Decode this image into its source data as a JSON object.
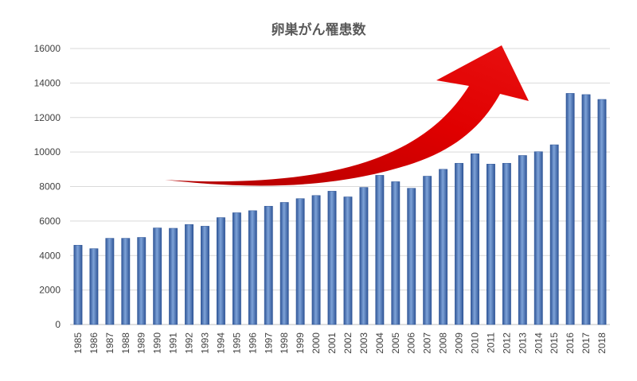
{
  "chart_data": {
    "type": "bar",
    "title": "卵巣がん罹患数",
    "xlabel": "",
    "ylabel": "",
    "ylim": [
      0,
      16000
    ],
    "yticks": [
      0,
      2000,
      4000,
      6000,
      8000,
      10000,
      12000,
      14000,
      16000
    ],
    "grid": true,
    "legend": "none",
    "categories": [
      "1985",
      "1986",
      "1987",
      "1988",
      "1989",
      "1990",
      "1991",
      "1992",
      "1993",
      "1994",
      "1995",
      "1996",
      "1997",
      "1998",
      "1999",
      "2000",
      "2001",
      "2002",
      "2003",
      "2004",
      "2005",
      "2006",
      "2007",
      "2008",
      "2009",
      "2010",
      "2011",
      "2012",
      "2013",
      "2014",
      "2015",
      "2016",
      "2017",
      "2018"
    ],
    "values": [
      4600,
      4400,
      5000,
      5000,
      5050,
      5600,
      5580,
      5800,
      5700,
      6200,
      6480,
      6600,
      6860,
      7080,
      7300,
      7480,
      7730,
      7400,
      7950,
      8650,
      8280,
      7900,
      8600,
      9000,
      9350,
      9900,
      9300,
      9350,
      9800,
      10020,
      10420,
      13400,
      13330,
      13050
    ],
    "colors": {
      "bar": "#4a74b5",
      "bar_dark": "#2f5597",
      "bar_light": "#7ea3d8",
      "arrow": "#e00000",
      "arrow_dark": "#b00000"
    },
    "annotation": {
      "type": "arrow",
      "direction": "up-right",
      "color": "#e00000"
    }
  }
}
